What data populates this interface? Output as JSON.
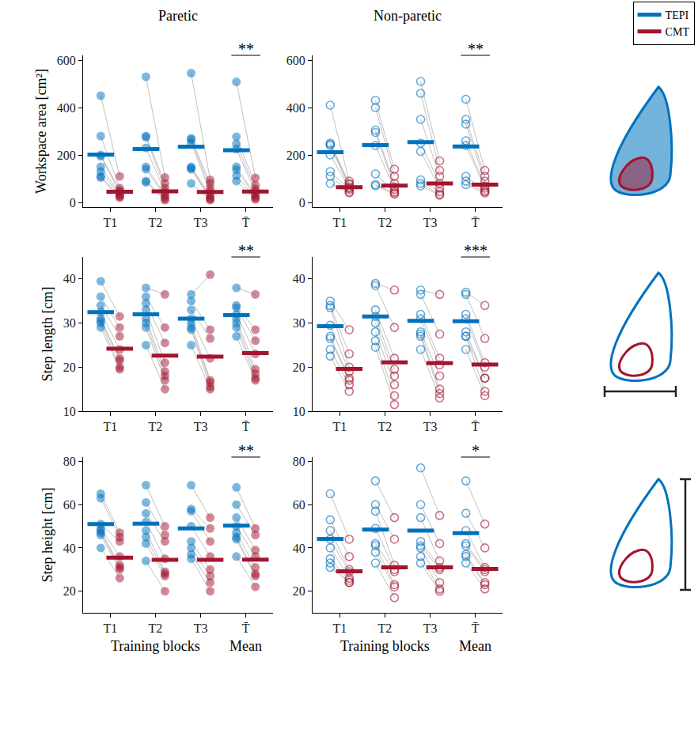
{
  "chart_data": [
    {
      "type": "scatter",
      "title": "Paretic",
      "y_label": "Workspace area [cm²]",
      "marker": "circle",
      "grid": false,
      "legend": "top right",
      "categories": [
        "T1",
        "T2",
        "T3",
        "T̄"
      ],
      "ylim": [
        -20,
        620
      ],
      "yticks": [
        0,
        200,
        400,
        600
      ],
      "series": [
        {
          "name": "TEPI",
          "color": "#0072BD",
          "values": [
            [
              450,
              280,
              200,
              195,
              150,
              130,
              110,
              105
            ],
            [
              530,
              280,
              275,
              230,
              150,
              140,
              90,
              85
            ],
            [
              545,
              270,
              265,
              250,
              150,
              145,
              140,
              80
            ],
            [
              508,
              277,
              247,
              225,
              150,
              138,
              113,
              90
            ]
          ],
          "means": [
            202,
            225,
            235,
            220
          ]
        },
        {
          "name": "CMT",
          "color": "#A2142F",
          "values": [
            [
              110,
              60,
              50,
              45,
              35,
              30,
              25,
              20
            ],
            [
              105,
              80,
              60,
              45,
              35,
              25,
              15,
              10
            ],
            [
              95,
              80,
              60,
              45,
              30,
              20,
              15,
              10
            ],
            [
              103,
              73,
              57,
              45,
              33,
              25,
              18,
              13
            ]
          ],
          "means": [
            45,
            47,
            44,
            46
          ]
        }
      ],
      "annotations": [
        {
          "category": "T̄",
          "text": "**"
        }
      ]
    },
    {
      "type": "scatter",
      "title": "Non-paretic",
      "marker": "circle-open",
      "grid": false,
      "categories": [
        "T1",
        "T2",
        "T3",
        "T̄"
      ],
      "ylim": [
        -20,
        620
      ],
      "yticks": [
        0,
        200,
        400,
        600
      ],
      "series": [
        {
          "name": "TEPI",
          "color": "#0072BD",
          "values": [
            [
              410,
              250,
              245,
              240,
              200,
              130,
              110,
              80
            ],
            [
              430,
              400,
              305,
              295,
              240,
              120,
              75,
              70
            ],
            [
              510,
              460,
              350,
              250,
              215,
              95,
              80,
              70
            ],
            [
              435,
              350,
              330,
              260,
              240,
              110,
              90,
              75
            ]
          ],
          "means": [
            212,
            242,
            254,
            236
          ]
        },
        {
          "name": "CMT",
          "color": "#A2142F",
          "values": [
            [
              90,
              80,
              75,
              65,
              60,
              55,
              45,
              40
            ],
            [
              140,
              110,
              80,
              65,
              55,
              45,
              40,
              35
            ],
            [
              175,
              135,
              110,
              80,
              60,
              45,
              35,
              30
            ],
            [
              135,
              110,
              90,
              70,
              60,
              50,
              45,
              40
            ]
          ],
          "means": [
            64,
            71,
            80,
            75
          ]
        }
      ],
      "annotations": [
        {
          "category": "T̄",
          "text": "**"
        }
      ]
    },
    {
      "type": "scatter",
      "y_label": "Step length [cm]",
      "marker": "circle",
      "grid": false,
      "categories": [
        "T1",
        "T2",
        "T3",
        "T̄"
      ],
      "ylim": [
        10,
        45
      ],
      "yticks": [
        10,
        20,
        30,
        40
      ],
      "series": [
        {
          "name": "TEPI",
          "color": "#0072BD",
          "values": [
            [
              39.5,
              36,
              34,
              32.5,
              31,
              30.5,
              30,
              29
            ],
            [
              38,
              36,
              34.5,
              33,
              31,
              30,
              29,
              25
            ],
            [
              36.5,
              35,
              33,
              31,
              30,
              29,
              28.5,
              25
            ],
            [
              38,
              34,
              33.5,
              32,
              31,
              30,
              29,
              27
            ]
          ],
          "means": [
            32.5,
            32,
            31,
            31.8
          ]
        },
        {
          "name": "CMT",
          "color": "#A2142F",
          "values": [
            [
              31.5,
              29,
              27,
              24,
              22,
              21.5,
              20,
              19.5
            ],
            [
              36.5,
              29,
              25.5,
              21,
              19,
              18,
              17,
              15
            ],
            [
              41,
              28.5,
              26.5,
              22,
              17,
              16.5,
              15.5,
              15
            ],
            [
              36.5,
              28.5,
              26,
              23,
              19.5,
              18.5,
              17.5,
              17
            ]
          ],
          "means": [
            24.2,
            22.6,
            22.4,
            23.2
          ]
        }
      ],
      "annotations": [
        {
          "category": "T̄",
          "text": "**"
        }
      ]
    },
    {
      "type": "scatter",
      "marker": "circle-open",
      "grid": false,
      "categories": [
        "T1",
        "T2",
        "T3",
        "T̄"
      ],
      "ylim": [
        10,
        45
      ],
      "yticks": [
        10,
        20,
        30,
        40
      ],
      "series": [
        {
          "name": "TEPI",
          "color": "#0072BD",
          "values": [
            [
              35,
              34,
              33.5,
              29.5,
              27,
              26.5,
              24,
              22.5
            ],
            [
              39,
              38.5,
              33,
              31.5,
              30,
              28,
              26,
              24.5
            ],
            [
              37.5,
              36.5,
              32,
              31,
              28,
              27.5,
              27,
              24
            ],
            [
              37,
              36.5,
              32,
              31,
              28,
              27,
              27,
              24
            ]
          ],
          "means": [
            29.3,
            31.5,
            30.5,
            30.4
          ]
        },
        {
          "name": "CMT",
          "color": "#A2142F",
          "values": [
            [
              28.5,
              23,
              20,
              19,
              17.5,
              17,
              16,
              14.5
            ],
            [
              37.5,
              29,
              22,
              19.5,
              18,
              16,
              13.5,
              11.5
            ],
            [
              36.5,
              27.5,
              22,
              20.5,
              18,
              15,
              14,
              13
            ],
            [
              34,
              26.5,
              21,
              20,
              17.5,
              17.5,
              14.5,
              13.5
            ]
          ],
          "means": [
            19.6,
            21.1,
            20.9,
            20.6
          ]
        }
      ],
      "annotations": [
        {
          "category": "T̄",
          "text": "***"
        }
      ]
    },
    {
      "type": "scatter",
      "y_label": "Step height [cm]",
      "marker": "circle",
      "grid": false,
      "categories": [
        "T1",
        "T2",
        "T3",
        "T̄"
      ],
      "x_group_labels": [
        {
          "text": "Training blocks",
          "categories": [
            "T1",
            "T2",
            "T3"
          ]
        },
        {
          "text": "Mean",
          "categories": [
            "T̄"
          ]
        }
      ],
      "ylim": [
        10,
        82
      ],
      "yticks": [
        20,
        40,
        60,
        80
      ],
      "series": [
        {
          "name": "TEPI",
          "color": "#0072BD",
          "values": [
            [
              65,
              63,
              51,
              49,
              48,
              47,
              46,
              40
            ],
            [
              69,
              61,
              56,
              52,
              48,
              45,
              42,
              34
            ],
            [
              69,
              58,
              57,
              50,
              43,
              40,
              37,
              35
            ],
            [
              68,
              60,
              54,
              50,
              47,
              45,
              44,
              36
            ]
          ],
          "means": [
            51,
            51.2,
            49,
            50.3
          ]
        },
        {
          "name": "CMT",
          "color": "#A2142F",
          "values": [
            [
              47,
              45,
              43,
              36,
              32,
              31,
              30,
              26
            ],
            [
              50,
              46,
              43,
              35,
              29,
              28,
              27,
              20
            ],
            [
              54,
              49,
              43,
              36,
              30,
              27,
              24,
              20
            ],
            [
              49,
              46,
              39,
              36,
              31,
              28,
              27,
              22
            ]
          ],
          "means": [
            35.5,
            34.5,
            34.5,
            34.6
          ]
        }
      ],
      "annotations": [
        {
          "category": "T̄",
          "text": "**"
        }
      ]
    },
    {
      "type": "scatter",
      "marker": "circle-open",
      "grid": false,
      "categories": [
        "T1",
        "T2",
        "T3",
        "T̄"
      ],
      "x_group_labels": [
        {
          "text": "Training blocks",
          "categories": [
            "T1",
            "T2",
            "T3"
          ]
        },
        {
          "text": "Mean",
          "categories": [
            "T̄"
          ]
        }
      ],
      "ylim": [
        10,
        82
      ],
      "yticks": [
        20,
        40,
        60,
        80
      ],
      "series": [
        {
          "name": "TEPI",
          "color": "#0072BD",
          "values": [
            [
              65,
              53,
              48,
              44,
              40,
              35,
              33,
              31
            ],
            [
              71,
              60,
              57,
              49,
              42,
              41,
              38,
              33
            ],
            [
              77,
              60,
              54,
              43,
              41,
              40,
              36,
              33
            ],
            [
              71,
              56,
              48,
              42,
              41,
              37,
              36,
              33
            ]
          ],
          "means": [
            44.2,
            48.5,
            48,
            46.8
          ]
        },
        {
          "name": "CMT",
          "color": "#A2142F",
          "values": [
            [
              44,
              36,
              30,
              29,
              26,
              25,
              24,
              24
            ],
            [
              54,
              44,
              32,
              30,
              29,
              23,
              22,
              17
            ],
            [
              55,
              42,
              34,
              31,
              30,
              24,
              21,
              20
            ],
            [
              51,
              40,
              31,
              30,
              29,
              24,
              23,
              21
            ]
          ],
          "means": [
            29.2,
            31,
            31,
            30.3
          ]
        }
      ],
      "annotations": [
        {
          "category": "T̄",
          "text": "*"
        }
      ]
    }
  ]
}
